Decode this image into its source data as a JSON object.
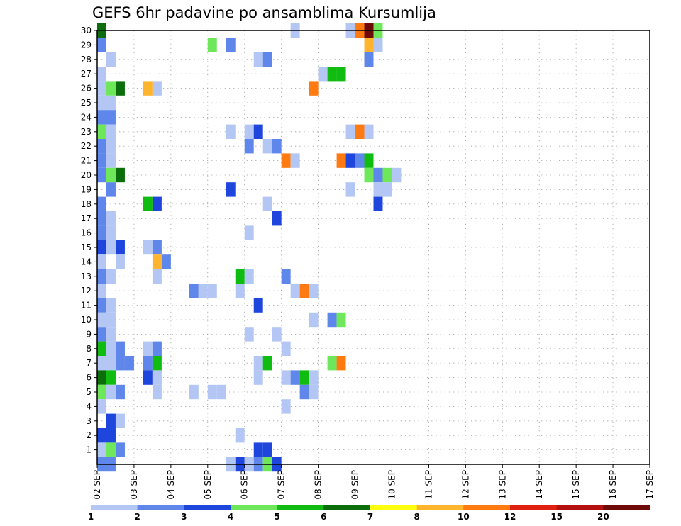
{
  "chart_data": {
    "type": "heatmap",
    "title": "GEFS 6hr padavine po ansamblima Kursumlija",
    "x_tick_labels": [
      "02 SEP",
      "03 SEP",
      "04 SEP",
      "05 SEP",
      "06 SEP",
      "07 SEP",
      "08 SEP",
      "09 SEP",
      "10 SEP",
      "11 SEP",
      "12 SEP",
      "13 SEP",
      "14 SEP",
      "15 SEP",
      "16 SEP",
      "17 SEP"
    ],
    "y_tick_labels": [
      "1",
      "2",
      "3",
      "4",
      "5",
      "6",
      "7",
      "8",
      "9",
      "10",
      "11",
      "12",
      "13",
      "14",
      "15",
      "16",
      "17",
      "18",
      "19",
      "20",
      "21",
      "22",
      "23",
      "24",
      "25",
      "26",
      "27",
      "28",
      "29",
      "30"
    ],
    "xlim": [
      "02 SEP 00Z",
      "17 SEP 00Z"
    ],
    "ylim": [
      0,
      30
    ],
    "grid": true,
    "levels": [
      "1",
      "2",
      "3",
      "4",
      "5",
      "6",
      "7",
      "8",
      "10",
      "12",
      "15",
      "20"
    ],
    "level_colors": [
      "#b4c6f4",
      "#5f86ea",
      "#1e46dc",
      "#6ee85a",
      "#10bc10",
      "#0b6e0b",
      "#ffff10",
      "#ffb42d",
      "#ff7a10",
      "#e02010",
      "#b41010",
      "#6e0a0a"
    ],
    "cells": [
      {
        "member": 30,
        "step": 0,
        "c": 5
      },
      {
        "member": 30,
        "step": 21,
        "c": 0
      },
      {
        "member": 30,
        "step": 27,
        "c": 0
      },
      {
        "member": 30,
        "step": 28,
        "c": 8
      },
      {
        "member": 30,
        "step": 29,
        "c": 11
      },
      {
        "member": 30,
        "step": 30,
        "c": 3
      },
      {
        "member": 29,
        "step": 0,
        "c": 1
      },
      {
        "member": 29,
        "step": 12,
        "c": 3
      },
      {
        "member": 29,
        "step": 14,
        "c": 1
      },
      {
        "member": 29,
        "step": 29,
        "c": 7
      },
      {
        "member": 29,
        "step": 30,
        "c": 0
      },
      {
        "member": 28,
        "step": 1,
        "c": 0
      },
      {
        "member": 28,
        "step": 17,
        "c": 0
      },
      {
        "member": 28,
        "step": 18,
        "c": 1
      },
      {
        "member": 28,
        "step": 29,
        "c": 1
      },
      {
        "member": 27,
        "step": 0,
        "c": 0
      },
      {
        "member": 27,
        "step": 24,
        "c": 0
      },
      {
        "member": 27,
        "step": 25,
        "c": 4
      },
      {
        "member": 27,
        "step": 26,
        "c": 4
      },
      {
        "member": 26,
        "step": 0,
        "c": 0
      },
      {
        "member": 26,
        "step": 1,
        "c": 3
      },
      {
        "member": 26,
        "step": 2,
        "c": 5
      },
      {
        "member": 26,
        "step": 5,
        "c": 7
      },
      {
        "member": 26,
        "step": 6,
        "c": 0
      },
      {
        "member": 26,
        "step": 23,
        "c": 8
      },
      {
        "member": 25,
        "step": 0,
        "c": 0
      },
      {
        "member": 25,
        "step": 1,
        "c": 0
      },
      {
        "member": 24,
        "step": 0,
        "c": 1
      },
      {
        "member": 24,
        "step": 1,
        "c": 1
      },
      {
        "member": 23,
        "step": 0,
        "c": 3
      },
      {
        "member": 23,
        "step": 1,
        "c": 0
      },
      {
        "member": 23,
        "step": 14,
        "c": 0
      },
      {
        "member": 23,
        "step": 16,
        "c": 0
      },
      {
        "member": 23,
        "step": 17,
        "c": 2
      },
      {
        "member": 23,
        "step": 27,
        "c": 0
      },
      {
        "member": 23,
        "step": 28,
        "c": 8
      },
      {
        "member": 23,
        "step": 29,
        "c": 0
      },
      {
        "member": 22,
        "step": 0,
        "c": 1
      },
      {
        "member": 22,
        "step": 1,
        "c": 0
      },
      {
        "member": 22,
        "step": 16,
        "c": 1
      },
      {
        "member": 22,
        "step": 18,
        "c": 0
      },
      {
        "member": 22,
        "step": 19,
        "c": 1
      },
      {
        "member": 21,
        "step": 0,
        "c": 1
      },
      {
        "member": 21,
        "step": 1,
        "c": 0
      },
      {
        "member": 21,
        "step": 20,
        "c": 8
      },
      {
        "member": 21,
        "step": 21,
        "c": 0
      },
      {
        "member": 21,
        "step": 26,
        "c": 8
      },
      {
        "member": 21,
        "step": 27,
        "c": 2
      },
      {
        "member": 21,
        "step": 28,
        "c": 1
      },
      {
        "member": 21,
        "step": 29,
        "c": 4
      },
      {
        "member": 20,
        "step": 0,
        "c": 1
      },
      {
        "member": 20,
        "step": 1,
        "c": 3
      },
      {
        "member": 20,
        "step": 2,
        "c": 5
      },
      {
        "member": 20,
        "step": 29,
        "c": 3
      },
      {
        "member": 20,
        "step": 30,
        "c": 1
      },
      {
        "member": 20,
        "step": 31,
        "c": 3
      },
      {
        "member": 20,
        "step": 32,
        "c": 0
      },
      {
        "member": 19,
        "step": 1,
        "c": 1
      },
      {
        "member": 19,
        "step": 14,
        "c": 2
      },
      {
        "member": 19,
        "step": 27,
        "c": 0
      },
      {
        "member": 19,
        "step": 30,
        "c": 0
      },
      {
        "member": 19,
        "step": 31,
        "c": 0
      },
      {
        "member": 18,
        "step": 0,
        "c": 1
      },
      {
        "member": 18,
        "step": 5,
        "c": 4
      },
      {
        "member": 18,
        "step": 6,
        "c": 2
      },
      {
        "member": 18,
        "step": 18,
        "c": 0
      },
      {
        "member": 18,
        "step": 30,
        "c": 2
      },
      {
        "member": 17,
        "step": 0,
        "c": 1
      },
      {
        "member": 17,
        "step": 1,
        "c": 0
      },
      {
        "member": 17,
        "step": 19,
        "c": 2
      },
      {
        "member": 16,
        "step": 0,
        "c": 1
      },
      {
        "member": 16,
        "step": 1,
        "c": 0
      },
      {
        "member": 16,
        "step": 16,
        "c": 0
      },
      {
        "member": 15,
        "step": 0,
        "c": 2
      },
      {
        "member": 15,
        "step": 1,
        "c": 0
      },
      {
        "member": 15,
        "step": 2,
        "c": 2
      },
      {
        "member": 15,
        "step": 5,
        "c": 0
      },
      {
        "member": 15,
        "step": 6,
        "c": 1
      },
      {
        "member": 14,
        "step": 0,
        "c": 0
      },
      {
        "member": 14,
        "step": 2,
        "c": 0
      },
      {
        "member": 14,
        "step": 6,
        "c": 7
      },
      {
        "member": 14,
        "step": 7,
        "c": 1
      },
      {
        "member": 13,
        "step": 0,
        "c": 1
      },
      {
        "member": 13,
        "step": 1,
        "c": 0
      },
      {
        "member": 13,
        "step": 6,
        "c": 0
      },
      {
        "member": 13,
        "step": 15,
        "c": 4
      },
      {
        "member": 13,
        "step": 16,
        "c": 0
      },
      {
        "member": 13,
        "step": 20,
        "c": 1
      },
      {
        "member": 12,
        "step": 0,
        "c": 0
      },
      {
        "member": 12,
        "step": 10,
        "c": 1
      },
      {
        "member": 12,
        "step": 11,
        "c": 0
      },
      {
        "member": 12,
        "step": 12,
        "c": 0
      },
      {
        "member": 12,
        "step": 15,
        "c": 0
      },
      {
        "member": 12,
        "step": 21,
        "c": 0
      },
      {
        "member": 12,
        "step": 22,
        "c": 8
      },
      {
        "member": 12,
        "step": 23,
        "c": 0
      },
      {
        "member": 11,
        "step": 0,
        "c": 1
      },
      {
        "member": 11,
        "step": 1,
        "c": 0
      },
      {
        "member": 11,
        "step": 17,
        "c": 2
      },
      {
        "member": 10,
        "step": 0,
        "c": 0
      },
      {
        "member": 10,
        "step": 1,
        "c": 0
      },
      {
        "member": 10,
        "step": 23,
        "c": 0
      },
      {
        "member": 10,
        "step": 25,
        "c": 1
      },
      {
        "member": 10,
        "step": 26,
        "c": 3
      },
      {
        "member": 9,
        "step": 0,
        "c": 1
      },
      {
        "member": 9,
        "step": 1,
        "c": 0
      },
      {
        "member": 9,
        "step": 16,
        "c": 0
      },
      {
        "member": 9,
        "step": 19,
        "c": 0
      },
      {
        "member": 8,
        "step": 0,
        "c": 4
      },
      {
        "member": 8,
        "step": 1,
        "c": 0
      },
      {
        "member": 8,
        "step": 2,
        "c": 1
      },
      {
        "member": 8,
        "step": 5,
        "c": 0
      },
      {
        "member": 8,
        "step": 6,
        "c": 1
      },
      {
        "member": 8,
        "step": 20,
        "c": 0
      },
      {
        "member": 7,
        "step": 0,
        "c": 0
      },
      {
        "member": 7,
        "step": 1,
        "c": 0
      },
      {
        "member": 7,
        "step": 2,
        "c": 1
      },
      {
        "member": 7,
        "step": 3,
        "c": 1
      },
      {
        "member": 7,
        "step": 5,
        "c": 1
      },
      {
        "member": 7,
        "step": 6,
        "c": 4
      },
      {
        "member": 7,
        "step": 17,
        "c": 0
      },
      {
        "member": 7,
        "step": 18,
        "c": 4
      },
      {
        "member": 7,
        "step": 25,
        "c": 3
      },
      {
        "member": 7,
        "step": 26,
        "c": 8
      },
      {
        "member": 6,
        "step": 0,
        "c": 5
      },
      {
        "member": 6,
        "step": 1,
        "c": 4
      },
      {
        "member": 6,
        "step": 5,
        "c": 2
      },
      {
        "member": 6,
        "step": 6,
        "c": 0
      },
      {
        "member": 6,
        "step": 17,
        "c": 0
      },
      {
        "member": 6,
        "step": 20,
        "c": 0
      },
      {
        "member": 6,
        "step": 21,
        "c": 1
      },
      {
        "member": 6,
        "step": 22,
        "c": 4
      },
      {
        "member": 6,
        "step": 23,
        "c": 0
      },
      {
        "member": 5,
        "step": 0,
        "c": 3
      },
      {
        "member": 5,
        "step": 1,
        "c": 0
      },
      {
        "member": 5,
        "step": 2,
        "c": 1
      },
      {
        "member": 5,
        "step": 6,
        "c": 0
      },
      {
        "member": 5,
        "step": 10,
        "c": 0
      },
      {
        "member": 5,
        "step": 12,
        "c": 0
      },
      {
        "member": 5,
        "step": 13,
        "c": 0
      },
      {
        "member": 5,
        "step": 22,
        "c": 1
      },
      {
        "member": 5,
        "step": 23,
        "c": 0
      },
      {
        "member": 4,
        "step": 0,
        "c": 0
      },
      {
        "member": 4,
        "step": 20,
        "c": 0
      },
      {
        "member": 3,
        "step": 1,
        "c": 2
      },
      {
        "member": 3,
        "step": 2,
        "c": 0
      },
      {
        "member": 2,
        "step": 0,
        "c": 2
      },
      {
        "member": 2,
        "step": 1,
        "c": 2
      },
      {
        "member": 2,
        "step": 15,
        "c": 0
      },
      {
        "member": 1,
        "step": 0,
        "c": 0
      },
      {
        "member": 1,
        "step": 1,
        "c": 3
      },
      {
        "member": 1,
        "step": 2,
        "c": 1
      },
      {
        "member": 1,
        "step": 17,
        "c": 2
      },
      {
        "member": 1,
        "step": 18,
        "c": 2
      },
      {
        "member": 0,
        "step": 0,
        "c": 1
      },
      {
        "member": 0,
        "step": 1,
        "c": 1
      },
      {
        "member": 0,
        "step": 14,
        "c": 0
      },
      {
        "member": 0,
        "step": 15,
        "c": 2
      },
      {
        "member": 0,
        "step": 16,
        "c": 0
      },
      {
        "member": 0,
        "step": 17,
        "c": 1
      },
      {
        "member": 0,
        "step": 18,
        "c": 3
      },
      {
        "member": 0,
        "step": 19,
        "c": 2
      }
    ]
  }
}
